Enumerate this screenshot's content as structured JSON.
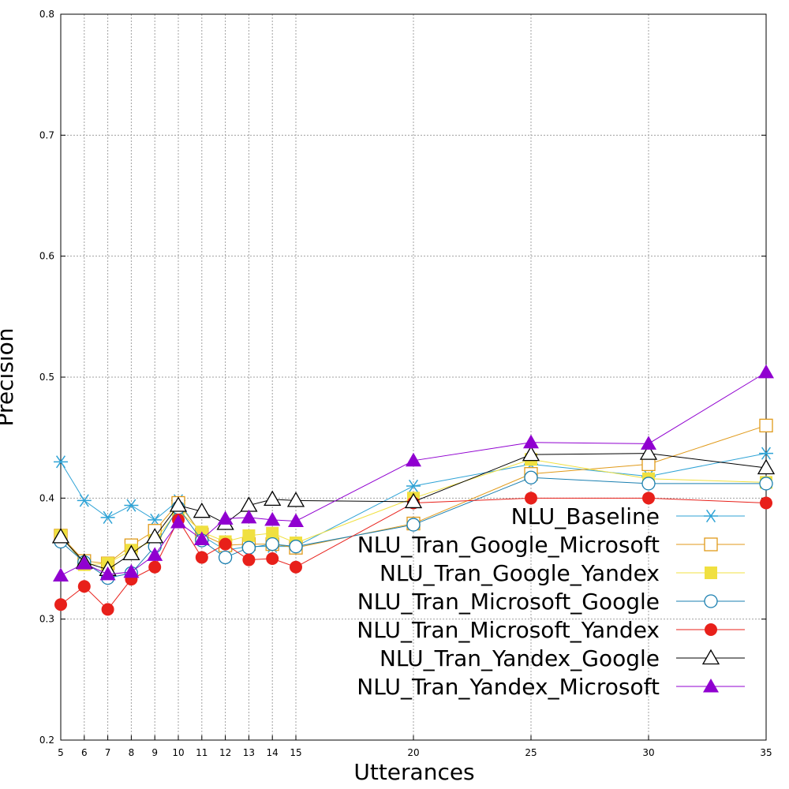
{
  "chart_data": {
    "type": "line",
    "title": "",
    "xlabel": "Utterances",
    "ylabel": "Precision",
    "x": [
      5,
      6,
      7,
      8,
      9,
      10,
      11,
      12,
      13,
      14,
      15,
      20,
      25,
      30,
      35
    ],
    "x_ticks": [
      5,
      6,
      7,
      8,
      9,
      10,
      11,
      12,
      13,
      14,
      15,
      20,
      25,
      30,
      35
    ],
    "y_ticks": [
      "0.2",
      "0.3",
      "0.4",
      "0.5",
      "0.6",
      "0.7",
      "0.8"
    ],
    "xlim": [
      5,
      35
    ],
    "ylim": [
      0.2,
      0.8
    ],
    "grid": true,
    "legend_position": "right",
    "series": [
      {
        "name": "NLU_Baseline",
        "color": "#2fa3d6",
        "marker": "star",
        "values": [
          0.43,
          0.398,
          0.384,
          0.394,
          0.382,
          0.398,
          0.369,
          0.357,
          0.36,
          0.36,
          0.36,
          0.41,
          0.428,
          0.418,
          0.437
        ]
      },
      {
        "name": "NLU_Tran_Google_Microsoft",
        "color": "#e09a1a",
        "marker": "square-open",
        "values": [
          0.369,
          0.348,
          0.346,
          0.361,
          0.373,
          0.396,
          0.37,
          0.361,
          0.362,
          0.362,
          0.359,
          0.379,
          0.42,
          0.428,
          0.46
        ]
      },
      {
        "name": "NLU_Tran_Google_Yandex",
        "color": "#f0e040",
        "marker": "square-filled",
        "values": [
          0.369,
          0.345,
          0.346,
          0.357,
          0.365,
          0.39,
          0.372,
          0.364,
          0.369,
          0.371,
          0.363,
          0.4,
          0.432,
          0.416,
          0.413
        ]
      },
      {
        "name": "NLU_Tran_Microsoft_Google",
        "color": "#1a7fb0",
        "marker": "circle-open",
        "values": [
          0.364,
          0.347,
          0.334,
          0.338,
          0.36,
          0.392,
          0.365,
          0.351,
          0.359,
          0.362,
          0.36,
          0.378,
          0.417,
          0.412,
          0.412
        ]
      },
      {
        "name": "NLU_Tran_Microsoft_Yandex",
        "color": "#e8201a",
        "marker": "circle-filled",
        "values": [
          0.312,
          0.327,
          0.308,
          0.333,
          0.343,
          0.382,
          0.351,
          0.362,
          0.349,
          0.35,
          0.343,
          0.396,
          0.4,
          0.4,
          0.396
        ]
      },
      {
        "name": "NLU_Tran_Yandex_Google",
        "color": "#000000",
        "marker": "triangle-open",
        "values": [
          0.368,
          0.347,
          0.341,
          0.354,
          0.368,
          0.394,
          0.389,
          0.379,
          0.394,
          0.399,
          0.398,
          0.397,
          0.436,
          0.437,
          0.425
        ]
      },
      {
        "name": "NLU_Tran_Yandex_Microsoft",
        "color": "#9000d0",
        "marker": "triangle-filled",
        "values": [
          0.336,
          0.346,
          0.337,
          0.339,
          0.353,
          0.38,
          0.366,
          0.383,
          0.384,
          0.382,
          0.381,
          0.431,
          0.446,
          0.445,
          0.504
        ]
      }
    ]
  }
}
